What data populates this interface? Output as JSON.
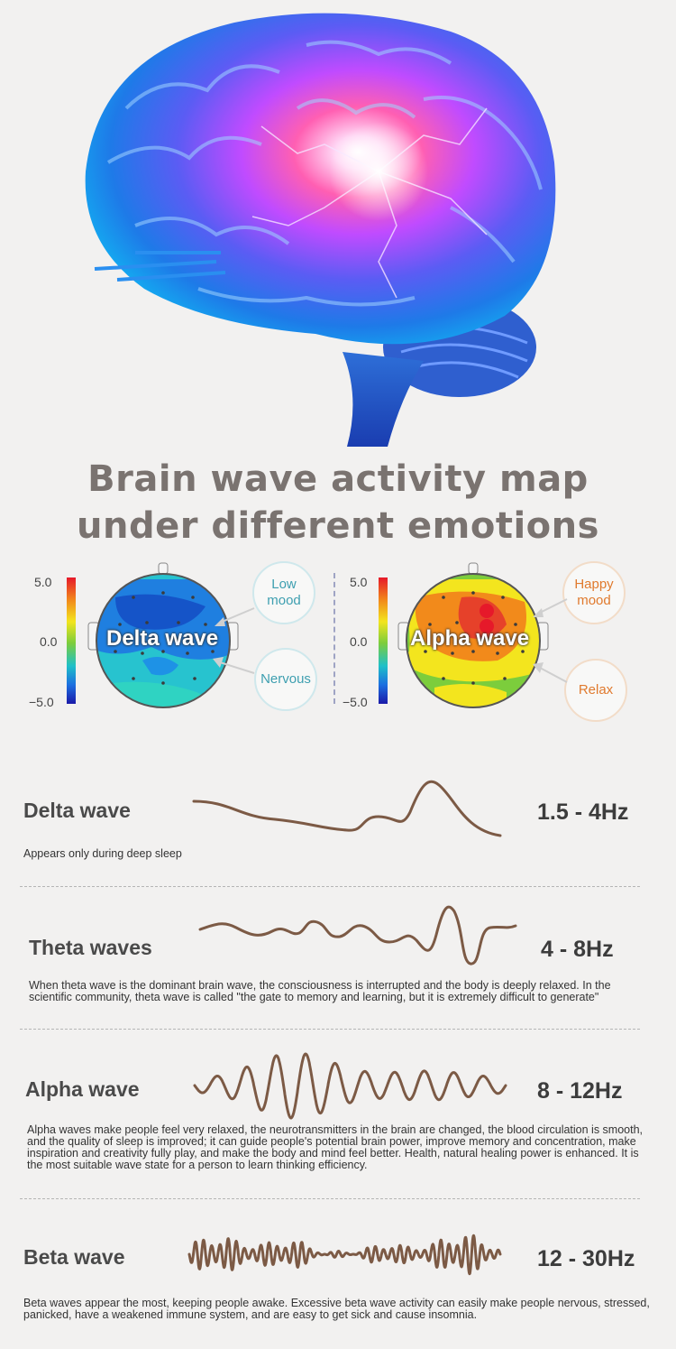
{
  "title_lines": [
    "Brain wave activity map",
    "under different emotions"
  ],
  "maps": {
    "left": {
      "scale_top": "5.0",
      "scale_mid": "0.0",
      "scale_bottom": "−5.0",
      "head_label": "Delta wave",
      "bubbles": [
        "Low\nmood",
        "Nervous"
      ]
    },
    "right": {
      "scale_top": "5.0",
      "scale_mid": "0.0",
      "scale_bottom": "−5.0",
      "head_label": "Alpha wave",
      "bubbles": [
        "Happy\nmood",
        "Relax"
      ]
    }
  },
  "waves": [
    {
      "name": "Delta wave",
      "freq": "1.5 - 4Hz",
      "desc": "Appears only during deep sleep"
    },
    {
      "name": "Theta waves",
      "freq": "4 - 8Hz",
      "desc": "When theta wave is the dominant brain wave, the consciousness is interrupted and the body is deeply relaxed. In the scientific community, theta wave is called \"the gate to memory and learning, but it is extremely difficult to generate\""
    },
    {
      "name": "Alpha wave",
      "freq": "8 - 12Hz",
      "desc": "Alpha waves make people feel very relaxed, the neurotransmitters in the brain are changed, the blood circulation is smooth, and the quality of sleep is improved; it can guide people's potential brain power, improve memory and concentration, make inspiration and creativity fully play, and make the body and mind feel better. Health, natural healing power is enhanced. It is the most suitable wave state for a person to learn thinking efficiency."
    },
    {
      "name": "Beta wave",
      "freq": "12 - 30Hz",
      "desc": "Beta waves appear the most, keeping people awake. Excessive beta wave activity can easily make people nervous, stressed, panicked, have a weakened immune system, and are easy to get sick and cause insomnia."
    }
  ],
  "colors": {
    "wave_stroke": "#7c5a45",
    "title": "#7a7370",
    "brain_blue": "#1f6fe0",
    "brain_pink": "#ff3aa0"
  }
}
